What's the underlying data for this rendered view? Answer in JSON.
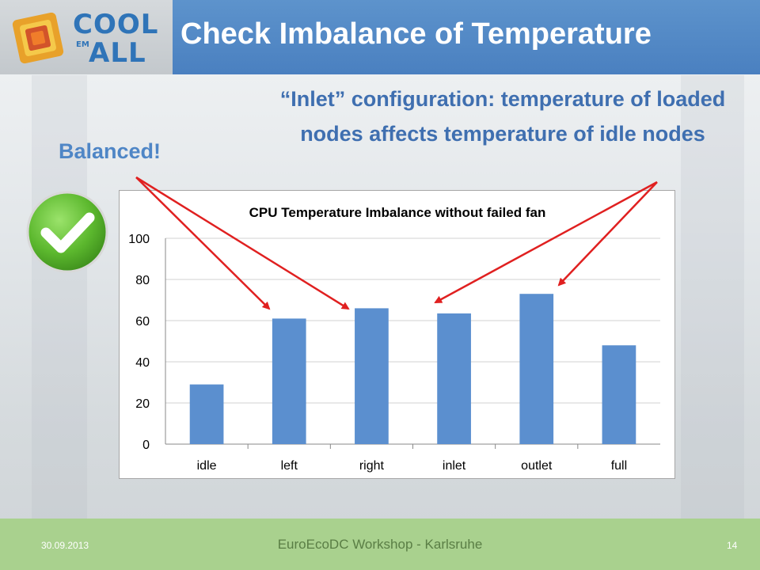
{
  "slide": {
    "title": "Check Imbalance of Temperature",
    "callout_right": "“Inlet” configuration: temperature of loaded nodes affects temperature of idle nodes",
    "callout_left": "Balanced!"
  },
  "logo": {
    "line1": "COOL",
    "line2": "ALL",
    "em": "EM"
  },
  "footer": {
    "date": "30.09.2013",
    "event": "EuroEcoDC Workshop - Karlsruhe",
    "page": "14"
  },
  "colors": {
    "header": "#4a80c0",
    "bar": "#5b8fcf",
    "arrow": "#e02020",
    "footer": "#a9d18e",
    "check": "#5cb82e"
  },
  "chart_data": {
    "type": "bar",
    "title": "CPU Temperature Imbalance without failed fan",
    "categories": [
      "idle",
      "left",
      "right",
      "inlet",
      "outlet",
      "full"
    ],
    "values": [
      29,
      61,
      66,
      63.5,
      73,
      48
    ],
    "ylim": [
      0,
      100
    ],
    "yticks": [
      0,
      20,
      40,
      60,
      80,
      100
    ],
    "xlabel": "",
    "ylabel": "",
    "grid": true,
    "legend": "none"
  }
}
